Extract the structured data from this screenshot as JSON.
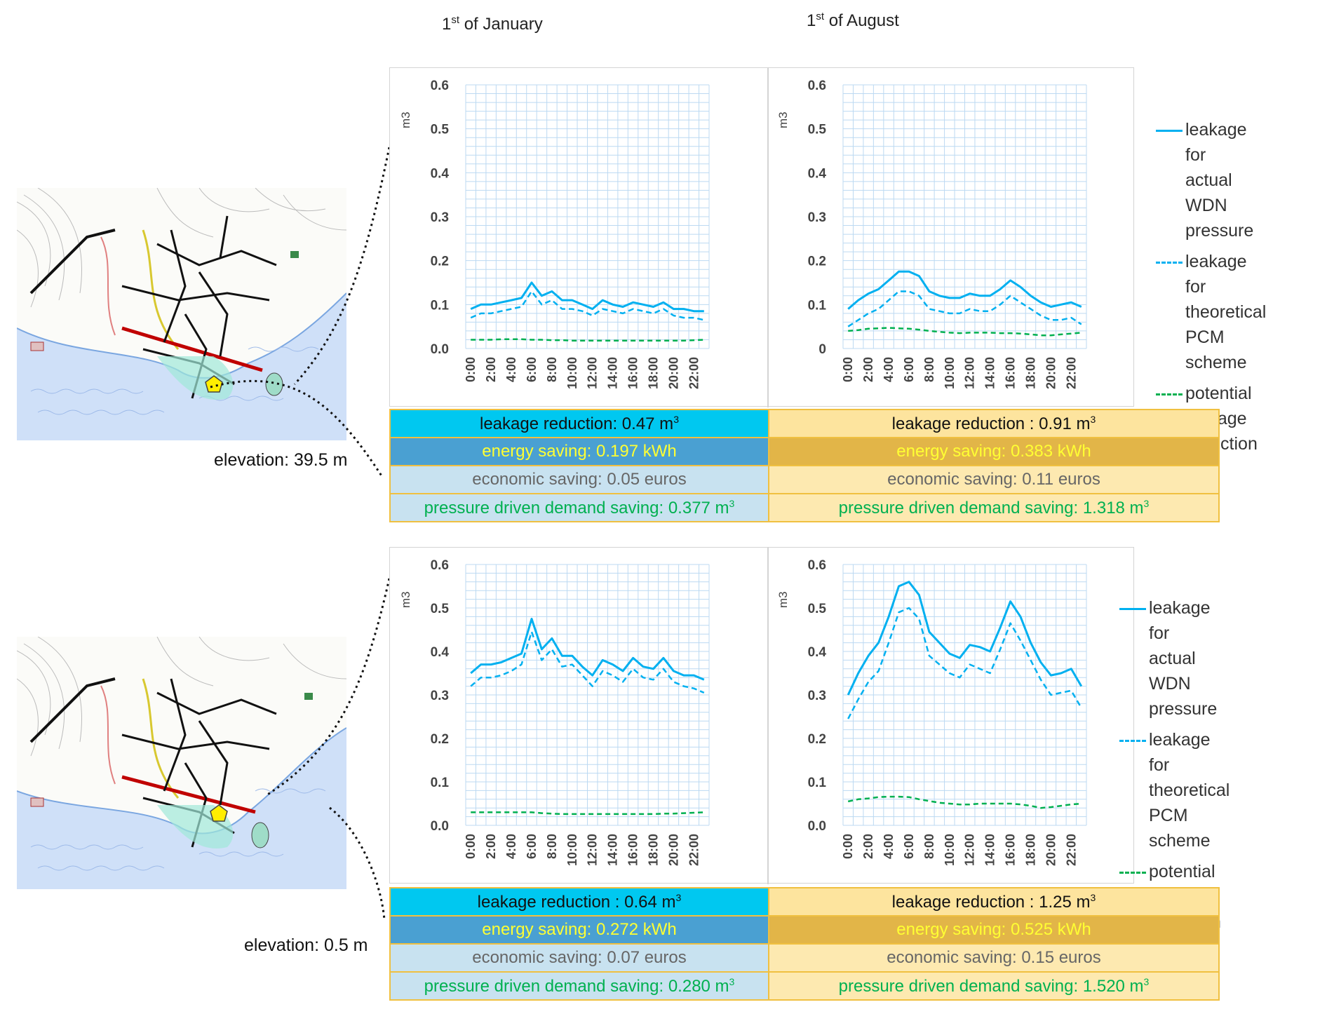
{
  "headers": {
    "january": "1st of January",
    "january_base": "1",
    "january_sup": "st",
    "january_rest": " of January",
    "august_base": "1",
    "august_sup": "st",
    "august_rest": " of August"
  },
  "elevations": {
    "top": "elevation: 39.5 m",
    "bottom": "elevation: 0.5 m"
  },
  "legend": {
    "actual": [
      "leakage for",
      "actual WDN",
      "pressure"
    ],
    "pcm": [
      "leakage for",
      "theoretical PCM",
      "scheme"
    ],
    "potential": [
      "potential",
      "leakage",
      "reduction"
    ]
  },
  "colors": {
    "actual": "#00b0f0",
    "pcm": "#00b0f0",
    "potential": "#00b050",
    "grid": "#bcd9f2"
  },
  "tables": {
    "top": {
      "jan_leak": "leakage reduction: 0.47 m",
      "aug_leak": "leakage reduction : 0.91 m",
      "jan_energy": "energy saving: 0.197 kWh",
      "aug_energy": "energy saving: 0.383 kWh",
      "jan_eco": "economic saving: 0.05 euros",
      "aug_eco": "economic saving: 0.11 euros",
      "jan_pd": "pressure driven demand saving: 0.377 m",
      "aug_pd": "pressure driven demand saving:  1.318 m"
    },
    "bottom": {
      "jan_leak": "leakage reduction : 0.64 m",
      "aug_leak": "leakage reduction : 1.25 m",
      "jan_energy": "energy saving: 0.272 kWh",
      "aug_energy": "energy saving: 0.525 kWh",
      "jan_eco": "economic saving: 0.07 euros",
      "aug_eco": "economic saving: 0.15 euros",
      "jan_pd": "pressure driven demand saving: 0.280 m",
      "aug_pd": "pressure driven demand saving: 1.520 m"
    },
    "unit_sup": "3"
  },
  "chart_data": [
    {
      "id": "top-jan",
      "type": "line",
      "title": "1st of January",
      "ylabel": "m3",
      "ylim": [
        0,
        0.6
      ],
      "yticks": [
        "0.0",
        "0.1",
        "0.2",
        "0.3",
        "0.4",
        "0.5",
        "0.6"
      ],
      "xticks": [
        "0:00",
        "2:00",
        "4:00",
        "6:00",
        "8:00",
        "10:00",
        "12:00",
        "14:00",
        "16:00",
        "18:00",
        "20:00",
        "22:00"
      ],
      "series": [
        {
          "name": "leakage for actual WDN pressure",
          "values": [
            0.09,
            0.1,
            0.1,
            0.105,
            0.11,
            0.115,
            0.15,
            0.12,
            0.13,
            0.11,
            0.11,
            0.1,
            0.09,
            0.11,
            0.1,
            0.095,
            0.105,
            0.1,
            0.095,
            0.105,
            0.09,
            0.09,
            0.085,
            0.085
          ]
        },
        {
          "name": "leakage for theoretical PCM scheme",
          "values": [
            0.07,
            0.08,
            0.08,
            0.085,
            0.09,
            0.095,
            0.13,
            0.1,
            0.11,
            0.09,
            0.09,
            0.085,
            0.075,
            0.09,
            0.085,
            0.08,
            0.09,
            0.085,
            0.08,
            0.09,
            0.075,
            0.07,
            0.07,
            0.065
          ]
        },
        {
          "name": "potential leakage reduction",
          "values": [
            0.02,
            0.02,
            0.02,
            0.021,
            0.021,
            0.021,
            0.02,
            0.02,
            0.019,
            0.019,
            0.018,
            0.018,
            0.018,
            0.018,
            0.018,
            0.018,
            0.018,
            0.018,
            0.018,
            0.018,
            0.018,
            0.018,
            0.019,
            0.02
          ]
        }
      ]
    },
    {
      "id": "top-aug",
      "type": "line",
      "title": "1st of August",
      "ylabel": "m3",
      "ylim": [
        0,
        0.6
      ],
      "yticks": [
        "0",
        "0.1",
        "0.2",
        "0.3",
        "0.4",
        "0.5",
        "0.6"
      ],
      "xticks": [
        "0:00",
        "2:00",
        "4:00",
        "6:00",
        "8:00",
        "10:00",
        "12:00",
        "14:00",
        "16:00",
        "18:00",
        "20:00",
        "22:00"
      ],
      "series": [
        {
          "name": "leakage for actual WDN pressure",
          "values": [
            0.09,
            0.11,
            0.125,
            0.135,
            0.155,
            0.175,
            0.175,
            0.165,
            0.13,
            0.12,
            0.115,
            0.115,
            0.125,
            0.12,
            0.12,
            0.135,
            0.155,
            0.14,
            0.12,
            0.105,
            0.095,
            0.1,
            0.105,
            0.095
          ]
        },
        {
          "name": "leakage for theoretical PCM scheme",
          "values": [
            0.05,
            0.065,
            0.08,
            0.09,
            0.11,
            0.13,
            0.13,
            0.12,
            0.09,
            0.085,
            0.08,
            0.08,
            0.09,
            0.085,
            0.085,
            0.1,
            0.12,
            0.105,
            0.09,
            0.075,
            0.065,
            0.065,
            0.07,
            0.055
          ]
        },
        {
          "name": "potential leakage reduction",
          "values": [
            0.04,
            0.042,
            0.045,
            0.046,
            0.047,
            0.046,
            0.045,
            0.043,
            0.04,
            0.038,
            0.036,
            0.035,
            0.036,
            0.036,
            0.036,
            0.035,
            0.035,
            0.034,
            0.032,
            0.03,
            0.03,
            0.032,
            0.034,
            0.036
          ]
        }
      ]
    },
    {
      "id": "bot-jan",
      "type": "line",
      "title": "1st of January",
      "ylabel": "m3",
      "ylim": [
        0,
        0.6
      ],
      "yticks": [
        "0.0",
        "0.1",
        "0.2",
        "0.3",
        "0.4",
        "0.5",
        "0.6"
      ],
      "xticks": [
        "0:00",
        "2:00",
        "4:00",
        "6:00",
        "8:00",
        "10:00",
        "12:00",
        "14:00",
        "16:00",
        "18:00",
        "20:00",
        "22:00"
      ],
      "series": [
        {
          "name": "leakage for actual WDN pressure",
          "values": [
            0.35,
            0.37,
            0.37,
            0.375,
            0.385,
            0.395,
            0.475,
            0.405,
            0.43,
            0.39,
            0.39,
            0.365,
            0.345,
            0.38,
            0.37,
            0.355,
            0.385,
            0.365,
            0.36,
            0.385,
            0.355,
            0.345,
            0.345,
            0.335
          ]
        },
        {
          "name": "leakage for theoretical PCM scheme",
          "values": [
            0.32,
            0.34,
            0.34,
            0.345,
            0.355,
            0.37,
            0.445,
            0.38,
            0.405,
            0.365,
            0.37,
            0.345,
            0.32,
            0.355,
            0.345,
            0.33,
            0.36,
            0.34,
            0.335,
            0.36,
            0.33,
            0.32,
            0.315,
            0.305
          ]
        },
        {
          "name": "potential leakage reduction",
          "values": [
            0.03,
            0.03,
            0.03,
            0.03,
            0.03,
            0.03,
            0.03,
            0.028,
            0.027,
            0.026,
            0.026,
            0.026,
            0.026,
            0.026,
            0.026,
            0.026,
            0.026,
            0.026,
            0.026,
            0.027,
            0.027,
            0.028,
            0.029,
            0.03
          ]
        }
      ]
    },
    {
      "id": "bot-aug",
      "type": "line",
      "title": "1st of August",
      "ylabel": "m3",
      "ylim": [
        0,
        0.6
      ],
      "yticks": [
        "0.0",
        "0.1",
        "0.2",
        "0.3",
        "0.4",
        "0.5",
        "0.6"
      ],
      "xticks": [
        "0:00",
        "2:00",
        "4:00",
        "6:00",
        "8:00",
        "10:00",
        "12:00",
        "14:00",
        "16:00",
        "18:00",
        "20:00",
        "22:00"
      ],
      "series": [
        {
          "name": "leakage for actual WDN pressure",
          "values": [
            0.3,
            0.35,
            0.39,
            0.42,
            0.48,
            0.55,
            0.56,
            0.53,
            0.445,
            0.42,
            0.395,
            0.385,
            0.415,
            0.41,
            0.4,
            0.455,
            0.515,
            0.48,
            0.42,
            0.375,
            0.345,
            0.35,
            0.36,
            0.32
          ]
        },
        {
          "name": "leakage for theoretical PCM scheme",
          "values": [
            0.245,
            0.29,
            0.33,
            0.355,
            0.42,
            0.49,
            0.5,
            0.475,
            0.39,
            0.37,
            0.35,
            0.34,
            0.37,
            0.36,
            0.35,
            0.405,
            0.465,
            0.425,
            0.38,
            0.335,
            0.3,
            0.305,
            0.31,
            0.27
          ]
        },
        {
          "name": "potential leakage reduction",
          "values": [
            0.055,
            0.06,
            0.062,
            0.065,
            0.066,
            0.066,
            0.065,
            0.06,
            0.056,
            0.052,
            0.05,
            0.048,
            0.048,
            0.05,
            0.05,
            0.05,
            0.05,
            0.048,
            0.045,
            0.04,
            0.042,
            0.045,
            0.048,
            0.05
          ]
        }
      ]
    }
  ]
}
